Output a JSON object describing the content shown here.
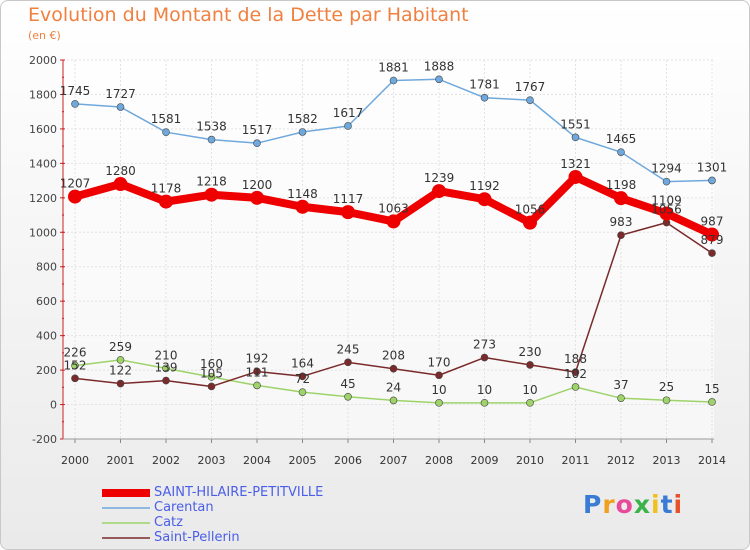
{
  "chart_data": {
    "type": "line",
    "title": "Evolution du Montant de la Dette par Habitant",
    "subtitle": "(en €)",
    "xlabel": "",
    "ylabel": "",
    "ylim": [
      -200,
      2000
    ],
    "yticks": [
      "-200",
      "0",
      "200",
      "400",
      "600",
      "800",
      "1000",
      "1200",
      "1400",
      "1600",
      "1800",
      "2000"
    ],
    "categories": [
      "2000",
      "2001",
      "2002",
      "2003",
      "2004",
      "2005",
      "2006",
      "2007",
      "2008",
      "2009",
      "2010",
      "2011",
      "2012",
      "2013",
      "2014"
    ],
    "grid": true,
    "legend_position": "bottom-left",
    "series": [
      {
        "name": "SAINT-HILAIRE-PETITVILLE",
        "color": "#ee0000",
        "values": [
          1207,
          1280,
          1178,
          1218,
          1200,
          1148,
          1117,
          1063,
          1239,
          1192,
          1056,
          1321,
          1198,
          1109,
          987
        ],
        "labels": [
          "1207",
          "1280",
          "1178",
          "1218",
          "1200",
          "1148",
          "1117",
          "1063",
          "1239",
          "1192",
          "1056",
          "1321",
          "1198",
          "1109",
          "987"
        ]
      },
      {
        "name": "Carentan",
        "color": "#6fa8dc",
        "values": [
          1745,
          1727,
          1581,
          1538,
          1517,
          1582,
          1617,
          1881,
          1888,
          1781,
          1767,
          1551,
          1465,
          1294,
          1301
        ],
        "labels": [
          "1745",
          "1727",
          "1581",
          "1538",
          "1517",
          "1582",
          "1617",
          "1881",
          "1888",
          "1781",
          "1767",
          "1551",
          "1465",
          "1294",
          "1301"
        ]
      },
      {
        "name": "Catz",
        "color": "#9ed36a",
        "values": [
          226,
          259,
          210,
          160,
          111,
          72,
          45,
          24,
          10,
          10,
          10,
          102,
          37,
          25,
          15
        ],
        "labels": [
          "226",
          "259",
          "210",
          "160",
          "111",
          "72",
          "45",
          "24",
          "10",
          "10",
          "10",
          "102",
          "37",
          "25",
          "15"
        ]
      },
      {
        "name": "Saint-Pellerin",
        "color": "#7a2a2a",
        "values": [
          152,
          122,
          139,
          105,
          192,
          164,
          245,
          208,
          170,
          273,
          230,
          188,
          983,
          1056,
          879
        ],
        "labels": [
          "152",
          "122",
          "139",
          "105",
          "192",
          "164",
          "245",
          "208",
          "170",
          "273",
          "230",
          "188",
          "983",
          "1056",
          "879"
        ]
      }
    ]
  },
  "logo": {
    "letters": [
      "P",
      "r",
      "o",
      "x",
      "i",
      "t",
      "i"
    ],
    "colors": [
      "#3a7bd5",
      "#f0a020",
      "#e84a9a",
      "#3ab34a",
      "#f0c020",
      "#3a7bd5",
      "#e8502a"
    ]
  }
}
